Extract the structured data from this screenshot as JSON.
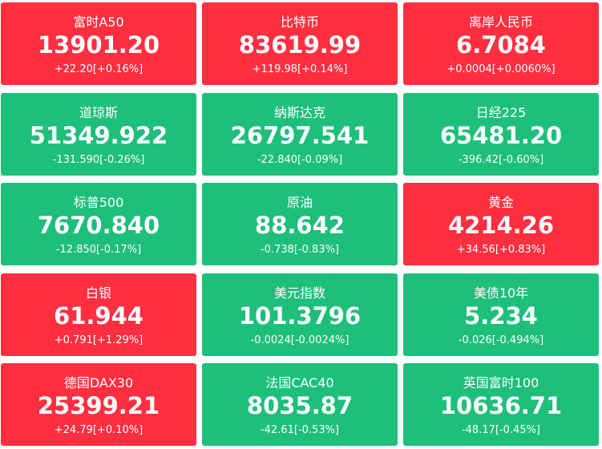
{
  "tiles": [
    {
      "name": "富时A50",
      "price": "13901.20",
      "change": "+22.20[+0.16%]",
      "color": "#ff2f40"
    },
    {
      "name": "比特币",
      "price": "83619.99",
      "change": "+119.98[+0.14%]",
      "color": "#ff2f40"
    },
    {
      "name": "离岸人民币",
      "price": "6.7084",
      "change": "+0.0004[+0.0060%]",
      "color": "#ff2f40"
    },
    {
      "name": "道琼斯",
      "price": "51349.922",
      "change": "-131.590[-0.26%]",
      "color": "#1dbf7b"
    },
    {
      "name": "纳斯达克",
      "price": "26797.541",
      "change": "-22.840[-0.09%]",
      "color": "#1dbf7b"
    },
    {
      "name": "日经225",
      "price": "65481.20",
      "change": "-396.42[-0.60%]",
      "color": "#1dbf7b"
    },
    {
      "name": "标普500",
      "price": "7670.840",
      "change": "-12.850[-0.17%]",
      "color": "#1dbf7b"
    },
    {
      "name": "原油",
      "price": "88.642",
      "change": "-0.738[-0.83%]",
      "color": "#1dbf7b"
    },
    {
      "name": "黄金",
      "price": "4214.26",
      "change": "+34.56[+0.83%]",
      "color": "#ff2f40"
    },
    {
      "name": "白银",
      "price": "61.944",
      "change": "+0.791[+1.29%]",
      "color": "#ff2f40"
    },
    {
      "name": "美元指数",
      "price": "101.3796",
      "change": "-0.0024[-0.0024%]",
      "color": "#1dbf7b"
    },
    {
      "name": "美债10年",
      "price": "5.234",
      "change": "-0.026[-0.494%]",
      "color": "#1dbf7b"
    },
    {
      "name": "德国DAX30",
      "price": "25399.21",
      "change": "+24.79[+0.10%]",
      "color": "#ff2f40"
    },
    {
      "name": "法国CAC40",
      "price": "8035.87",
      "change": "-42.61[-0.53%]",
      "color": "#1dbf7b"
    },
    {
      "name": "英国富时100",
      "price": "10636.71",
      "change": "-48.17[-0.45%]",
      "color": "#1dbf7b"
    }
  ]
}
